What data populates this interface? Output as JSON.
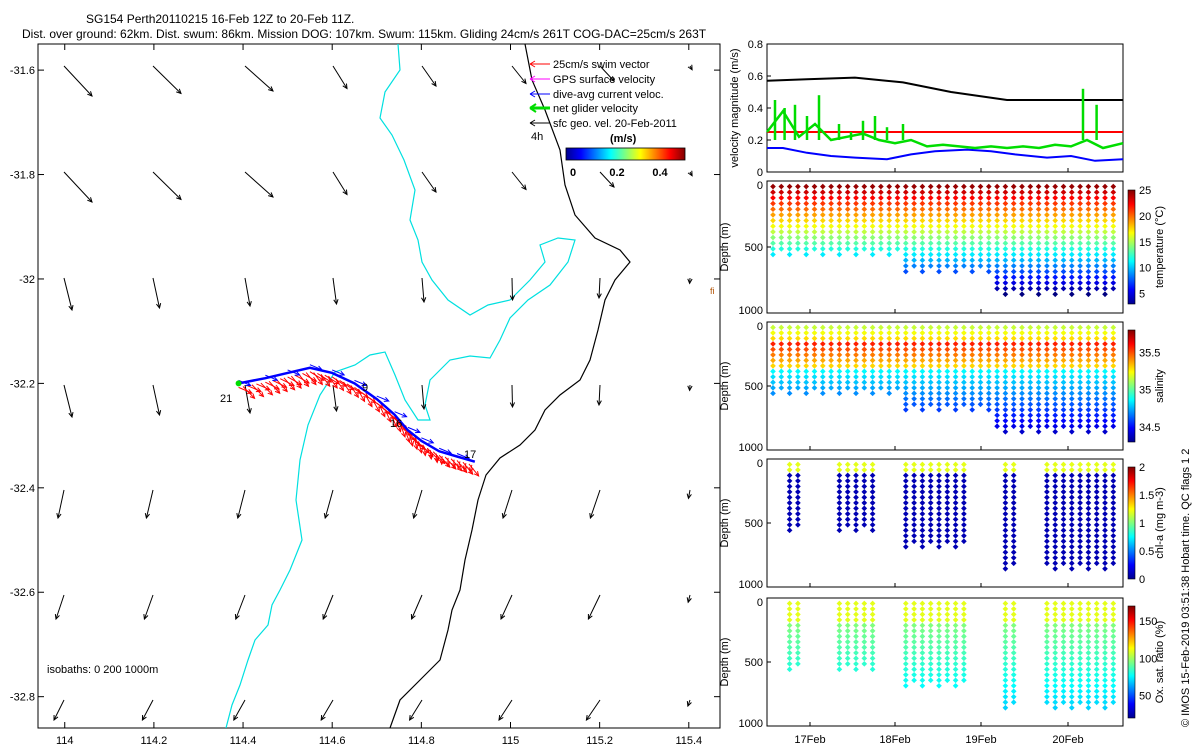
{
  "header": {
    "title": "SG154 Perth20110215 16-Feb 12Z to 20-Feb 11Z.",
    "subtitle": "Dist. over ground: 62km. Dist. swum: 86km. Mission DOG: 107km. Swum: 115km. Gliding 24cm/s 261T COG-DAC=25cm/s 263T"
  },
  "footer_credit": "© IMOS 15-Feb-2019 03:51:38 Hobart time. QC flags 1  2",
  "colors": {
    "swim": "#ff0000",
    "gps": "#ff00ff",
    "dac": "#0000ff",
    "net": "#00dd00",
    "sfc": "#000000",
    "coast_isobath": "#00e0e0",
    "deep_isobath": "#000000"
  },
  "chart_data": [
    {
      "type": "vector_map",
      "title": "SG154 Perth20110215 16-Feb 12Z to 20-Feb 11Z.",
      "xticks": [
        "114",
        "114.2",
        "114.4",
        "114.6",
        "114.8",
        "115",
        "115.2",
        "115.4"
      ],
      "yticks": [
        "-31.6",
        "-31.8",
        "-32",
        "-32.2",
        "-32.4",
        "-32.6",
        "-32.8"
      ],
      "xlim": [
        113.94,
        115.47
      ],
      "ylim": [
        -32.86,
        -31.55
      ],
      "legend": {
        "items": [
          "25cm/s swim vector",
          "GPS surface velocity",
          "dive-avg current veloc.",
          "net glider velocity",
          "sfc geo. vel. 20-Feb-2011"
        ],
        "time_label": "4h",
        "colorbar_label": "(m/s)",
        "colorbar_ticks": [
          "0",
          "0.2",
          "0.4"
        ]
      },
      "isobaths_label": "isobaths: 0   200  1000m",
      "track_labels": [
        "21",
        "9",
        "16",
        "17"
      ],
      "track": {
        "lon": [
          114.39,
          114.45,
          114.5,
          114.55,
          114.6,
          114.65,
          114.7,
          114.74,
          114.77,
          114.8,
          114.84,
          114.88,
          114.92
        ],
        "lat": [
          -32.2,
          -32.19,
          -32.18,
          -32.17,
          -32.18,
          -32.2,
          -32.23,
          -32.26,
          -32.29,
          -32.31,
          -32.33,
          -32.34,
          -32.35
        ]
      }
    },
    {
      "type": "line",
      "ylabel": "velocity magnitude (m/s)",
      "yticks": [
        "0",
        "0.2",
        "0.4",
        "0.6",
        "0.8"
      ],
      "ylim": [
        0,
        0.8
      ],
      "series": [
        {
          "name": "sfc geo. vel.",
          "color": "#000000",
          "x": [
            16.5,
            17.0,
            17.6,
            18.2,
            18.8,
            19.5,
            20.3,
            20.95
          ],
          "y": [
            0.57,
            0.58,
            0.59,
            0.56,
            0.5,
            0.45,
            0.45,
            0.45
          ]
        },
        {
          "name": "25cm/s swim vector",
          "color": "#ff0000",
          "x": [
            16.5,
            20.95
          ],
          "y": [
            0.25,
            0.25
          ]
        },
        {
          "name": "dive-avg current",
          "color": "#0000ff",
          "x": [
            16.5,
            16.7,
            17.0,
            17.3,
            17.6,
            18.0,
            18.3,
            18.6,
            19.0,
            19.3,
            19.6,
            20.0,
            20.3,
            20.6,
            20.95
          ],
          "y": [
            0.15,
            0.15,
            0.12,
            0.1,
            0.09,
            0.08,
            0.11,
            0.13,
            0.14,
            0.13,
            0.11,
            0.09,
            0.1,
            0.07,
            0.08
          ]
        },
        {
          "name": "net glider velocity",
          "color": "#00dd00",
          "x": [
            16.5,
            16.7,
            16.9,
            17.1,
            17.3,
            17.5,
            17.7,
            17.9,
            18.1,
            18.3,
            18.5,
            18.7,
            18.9,
            19.1,
            19.3,
            19.5,
            19.7,
            19.9,
            20.1,
            20.3,
            20.5,
            20.7,
            20.95
          ],
          "y": [
            0.25,
            0.38,
            0.22,
            0.3,
            0.2,
            0.22,
            0.24,
            0.2,
            0.18,
            0.2,
            0.16,
            0.17,
            0.16,
            0.15,
            0.16,
            0.15,
            0.16,
            0.15,
            0.17,
            0.16,
            0.2,
            0.15,
            0.18
          ]
        }
      ]
    },
    {
      "type": "scatter",
      "ylabel": "Depth (m)",
      "yticks": [
        "0",
        "500",
        "1000"
      ],
      "colorbar_label": "temperature (°C)",
      "colorbar_ticks": [
        "5",
        "10",
        "15",
        "20",
        "25"
      ],
      "clim": [
        3,
        25
      ]
    },
    {
      "type": "scatter",
      "ylabel": "Depth (m)",
      "yticks": [
        "0",
        "500",
        "1000"
      ],
      "colorbar_label": "salinity",
      "colorbar_ticks": [
        "34.5",
        "35",
        "35.5"
      ],
      "clim": [
        34.3,
        35.8
      ]
    },
    {
      "type": "scatter",
      "ylabel": "Depth (m)",
      "yticks": [
        "0",
        "500",
        "1000"
      ],
      "colorbar_label": "chl-a (mg m-3)",
      "colorbar_ticks": [
        "0",
        "0.5",
        "1",
        "1.5",
        "2"
      ],
      "clim": [
        0,
        2
      ]
    },
    {
      "type": "scatter",
      "ylabel": "Depth (m)",
      "yticks": [
        "0",
        "500",
        "1000"
      ],
      "colorbar_label": "Ox. sat. ratio (%)",
      "colorbar_ticks": [
        "50",
        "100",
        "150"
      ],
      "clim": [
        20,
        170
      ],
      "xticks": [
        "17Feb",
        "18Feb",
        "19Feb",
        "20Feb"
      ]
    }
  ]
}
